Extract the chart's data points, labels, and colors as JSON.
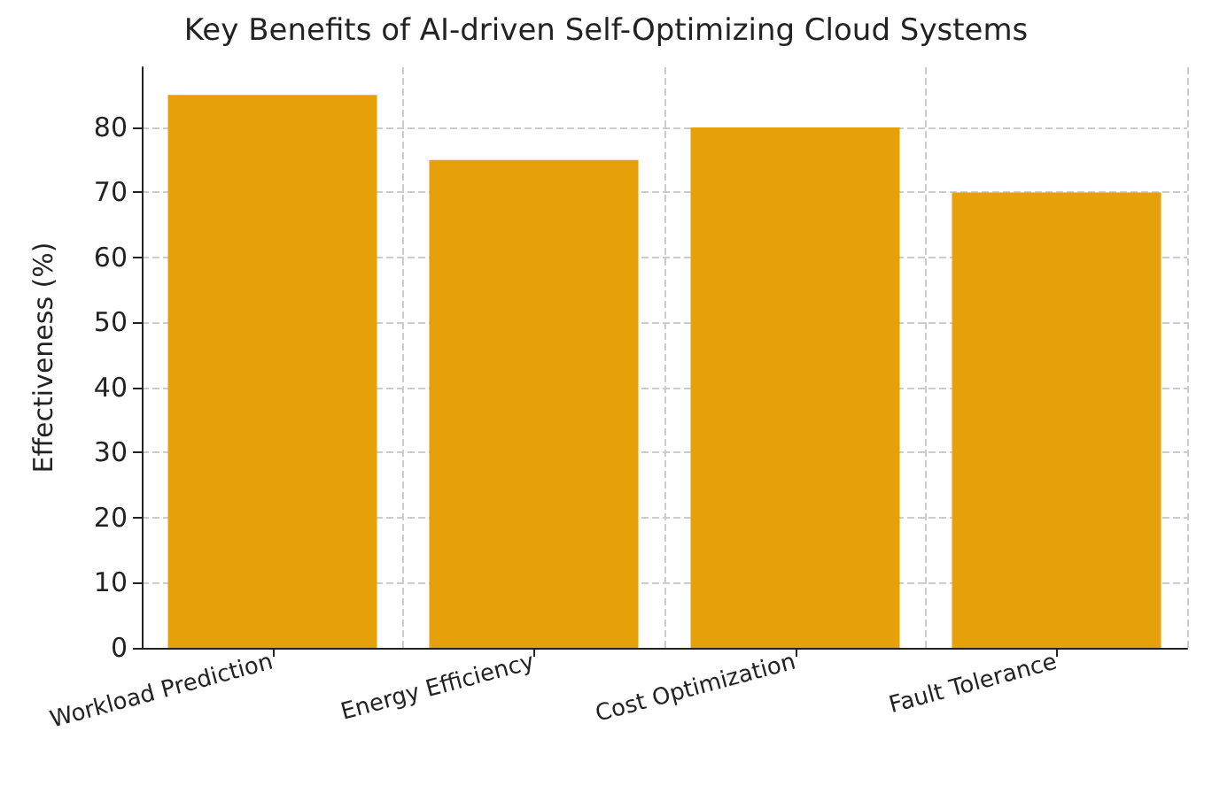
{
  "chart_data": {
    "type": "bar",
    "title": "Key Benefits of AI-driven Self-Optimizing Cloud Systems",
    "ylabel": "Effectiveness (%)",
    "categories": [
      "Workload Prediction",
      "Energy Efficiency",
      "Cost Optimization",
      "Fault Tolerance"
    ],
    "values": [
      85,
      75,
      80,
      70
    ],
    "color": "#e6a00a",
    "ylim": [
      0,
      89.25
    ],
    "yticks": [
      0,
      10,
      20,
      30,
      40,
      50,
      60,
      70,
      80
    ],
    "grid": true
  }
}
